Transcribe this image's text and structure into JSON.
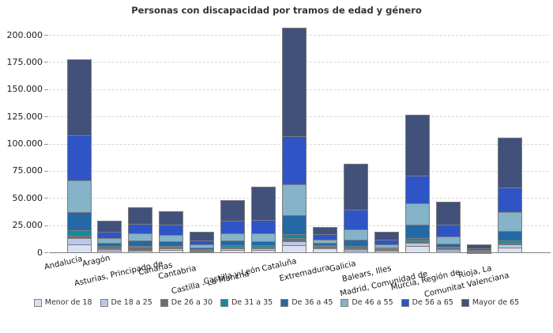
{
  "title": "Personas con discapacidad por tramos de edad y género",
  "chart_data": {
    "type": "bar",
    "stacked": true,
    "title": "Personas con discapacidad por tramos de edad y género",
    "xlabel": "",
    "ylabel": "",
    "ylim": [
      0,
      200000
    ],
    "grid": "horizontal-dashed",
    "legend_position": "bottom",
    "y_ticks": [
      {
        "value": 0,
        "label": "0"
      },
      {
        "value": 25000,
        "label": "25.000"
      },
      {
        "value": 50000,
        "label": "50.000"
      },
      {
        "value": 75000,
        "label": "75.000"
      },
      {
        "value": 100000,
        "label": "100.000"
      },
      {
        "value": 125000,
        "label": "125.000"
      },
      {
        "value": 150000,
        "label": "150.000"
      },
      {
        "value": 175000,
        "label": "175.000"
      },
      {
        "value": 200000,
        "label": "200.000"
      }
    ],
    "categories": [
      "Andalucía",
      "Aragón",
      "Asturias, Principado de",
      "Canarias",
      "Cantabria",
      "Castilla - La Mancha",
      "Castilla y León",
      "Cataluña",
      "Extremadura",
      "Galicia",
      "Balears, Illes",
      "Madrid, Comunidad de",
      "Murcia, Región de",
      "Rioja, La",
      "Comunitat Valenciana"
    ],
    "series": [
      {
        "name": "Menor de 18",
        "color": "#dcdef2",
        "values": [
          7000,
          1700,
          1200,
          2000,
          500,
          2400,
          2200,
          6800,
          3300,
          1700,
          1700,
          5600,
          1500,
          300,
          4400
        ]
      },
      {
        "name": "De 18 a 25",
        "color": "#b9c9e8",
        "values": [
          6000,
          1200,
          1200,
          1700,
          700,
          1500,
          1200,
          3600,
          1100,
          1200,
          600,
          2900,
          1300,
          300,
          2900
        ]
      },
      {
        "name": "De 26 a 30",
        "color": "#6e6e6e",
        "values": [
          2400,
          1700,
          2400,
          1700,
          700,
          1500,
          1900,
          2400,
          1300,
          1200,
          600,
          2400,
          1300,
          200,
          1700
        ]
      },
      {
        "name": "De 31 a 35",
        "color": "#128a9e",
        "values": [
          4900,
          1000,
          1200,
          700,
          700,
          1000,
          1200,
          4100,
          800,
          1500,
          500,
          2400,
          800,
          200,
          2000
        ]
      },
      {
        "name": "De 36 a 45",
        "color": "#2469a5",
        "values": [
          16700,
          2900,
          4900,
          4100,
          1900,
          4400,
          3900,
          17000,
          2100,
          6100,
          1200,
          12400,
          3400,
          500,
          8900
        ]
      },
      {
        "name": "De 46 a 55",
        "color": "#85b3c8",
        "values": [
          29000,
          4400,
          6800,
          6100,
          2900,
          6800,
          7300,
          28600,
          3100,
          9500,
          2400,
          19100,
          6500,
          600,
          17000
        ]
      },
      {
        "name": "De 56 a 65",
        "color": "#2e54c6",
        "values": [
          41500,
          5800,
          8200,
          9200,
          3200,
          11300,
          12100,
          44600,
          4800,
          17900,
          4600,
          25900,
          10900,
          1200,
          22500
        ]
      },
      {
        "name": "Mayor de 65",
        "color": "#41517a",
        "values": [
          70000,
          10400,
          15400,
          12100,
          8000,
          18900,
          30800,
          99600,
          6700,
          42700,
          7300,
          55800,
          20600,
          4100,
          46000
        ]
      }
    ]
  }
}
